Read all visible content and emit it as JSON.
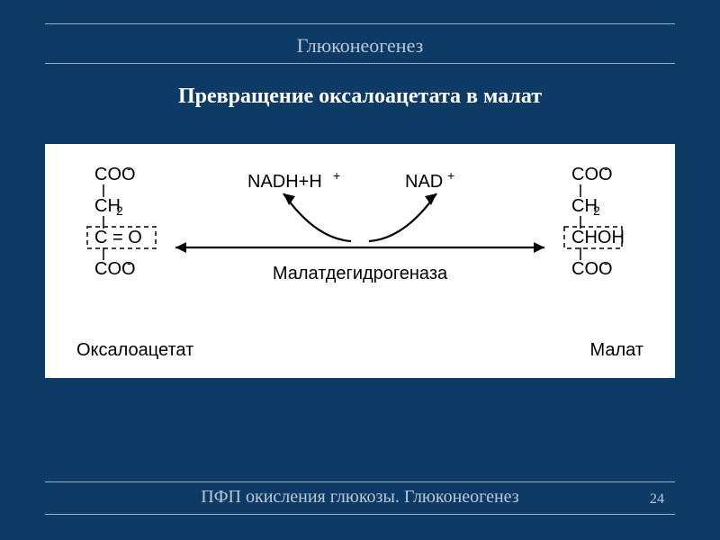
{
  "colors": {
    "background": "#0e3b66",
    "text_light": "#b9c7d7",
    "text_white": "#ffffff",
    "rule": "#9db0c4",
    "diagram_bg": "#ffffff",
    "diagram_fg": "#000000"
  },
  "header": {
    "title": "Глюконеогенез"
  },
  "subtitle": "Превращение оксалоацетата в малат",
  "footer": {
    "text": "ПФП окисления глюкозы. Глюконеогенез",
    "page": "24"
  },
  "diagram": {
    "enzyme": "Малатдегидрогеназа",
    "reactant_top": "NADH+H",
    "reactant_top_sup": "+",
    "product_top": "NAD",
    "product_top_sup": "+",
    "left_molecule": {
      "name": "Оксалоацетат",
      "lines": [
        "COO",
        "CH",
        "C = O",
        "COO"
      ],
      "sups": [
        "-",
        "2",
        "",
        "-"
      ],
      "dashed_index": 2
    },
    "right_molecule": {
      "name": "Малат",
      "lines": [
        "COO",
        "CH",
        "CHOH",
        "COO"
      ],
      "sups": [
        "-",
        "2",
        "",
        "-"
      ],
      "dashed_index": 2
    },
    "style": {
      "font_family": "Arial, Helvetica, sans-serif",
      "formula_fontsize": 20,
      "label_fontsize": 20,
      "enzyme_fontsize": 20,
      "line_width": 2.2
    }
  }
}
